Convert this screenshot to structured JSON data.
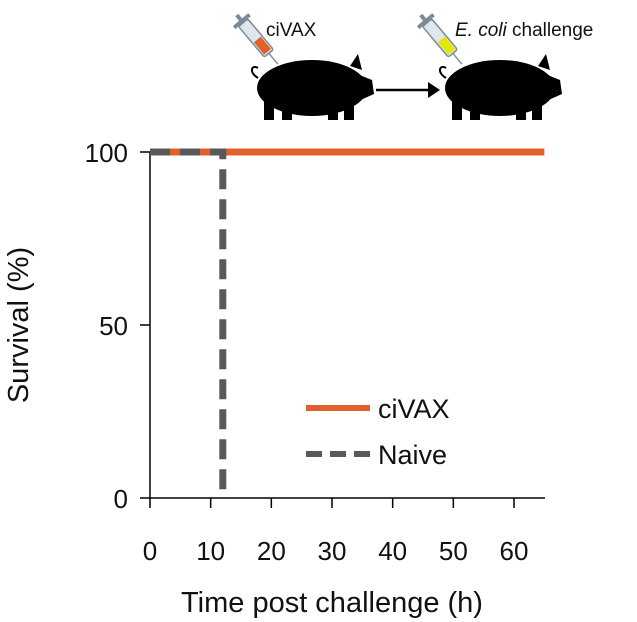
{
  "chart_data": {
    "type": "line",
    "title": "",
    "xlabel": "Time post challenge (h)",
    "ylabel": "Survival (%)",
    "xlim": [
      0,
      65
    ],
    "ylim": [
      0,
      100
    ],
    "xticks": [
      0,
      10,
      20,
      30,
      40,
      50,
      60
    ],
    "yticks": [
      0,
      50,
      100
    ],
    "grid": false,
    "legend_position": "bottom-right",
    "series": [
      {
        "name": "ciVAX",
        "color": "#e0612b",
        "style": "solid",
        "x": [
          0,
          65
        ],
        "y": [
          100,
          100
        ]
      },
      {
        "name": "Naive",
        "color": "#595959",
        "style": "dashed",
        "x": [
          0,
          12,
          12
        ],
        "y": [
          100,
          100,
          0
        ]
      }
    ]
  },
  "schematic": {
    "step1_label": "ciVAX",
    "step2_label_italic": "E. coli",
    "step2_label_rest": " challenge",
    "step1_syringe_color": "#e0612b",
    "step2_syringe_color": "#e6e600"
  }
}
